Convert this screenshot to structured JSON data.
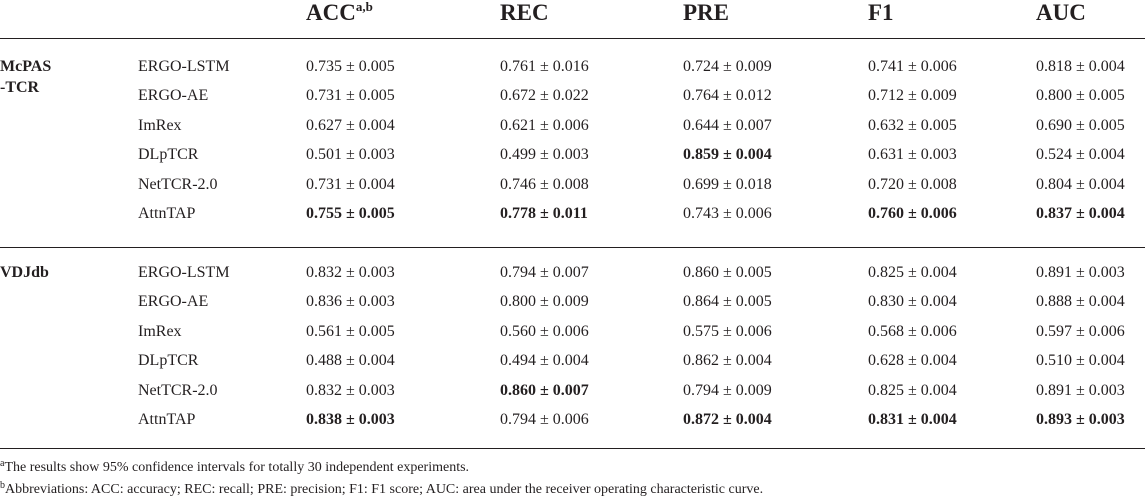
{
  "table": {
    "columns": [
      {
        "label": "ACC",
        "sup": "a,b"
      },
      {
        "label": "REC",
        "sup": ""
      },
      {
        "label": "PRE",
        "sup": ""
      },
      {
        "label": "F1",
        "sup": ""
      },
      {
        "label": "AUC",
        "sup": ""
      }
    ],
    "groups": [
      {
        "name_lines": [
          "McPAS",
          "-TCR"
        ],
        "rows": [
          {
            "model": "ERGO-LSTM",
            "values": [
              "0.735 ± 0.005",
              "0.761 ± 0.016",
              "0.724 ± 0.009",
              "0.741 ± 0.006",
              "0.818 ± 0.004"
            ],
            "bold": [
              false,
              false,
              false,
              false,
              false
            ]
          },
          {
            "model": "ERGO-AE",
            "values": [
              "0.731 ± 0.005",
              "0.672 ± 0.022",
              "0.764 ± 0.012",
              "0.712 ± 0.009",
              "0.800 ± 0.005"
            ],
            "bold": [
              false,
              false,
              false,
              false,
              false
            ]
          },
          {
            "model": "ImRex",
            "values": [
              "0.627 ± 0.004",
              "0.621 ± 0.006",
              "0.644 ± 0.007",
              "0.632 ± 0.005",
              "0.690 ± 0.005"
            ],
            "bold": [
              false,
              false,
              false,
              false,
              false
            ]
          },
          {
            "model": "DLpTCR",
            "values": [
              "0.501 ± 0.003",
              "0.499 ± 0.003",
              "0.859 ± 0.004",
              "0.631 ± 0.003",
              "0.524 ± 0.004"
            ],
            "bold": [
              false,
              false,
              true,
              false,
              false
            ]
          },
          {
            "model": "NetTCR-2.0",
            "values": [
              "0.731 ± 0.004",
              "0.746 ± 0.008",
              "0.699 ± 0.018",
              "0.720 ± 0.008",
              "0.804 ± 0.004"
            ],
            "bold": [
              false,
              false,
              false,
              false,
              false
            ]
          },
          {
            "model": "AttnTAP",
            "values": [
              "0.755 ± 0.005",
              "0.778 ± 0.011",
              "0.743 ± 0.006",
              "0.760 ± 0.006",
              "0.837 ± 0.004"
            ],
            "bold": [
              true,
              true,
              false,
              true,
              true
            ]
          }
        ]
      },
      {
        "name_lines": [
          "VDJdb"
        ],
        "rows": [
          {
            "model": "ERGO-LSTM",
            "values": [
              "0.832 ± 0.003",
              "0.794 ± 0.007",
              "0.860 ± 0.005",
              "0.825 ± 0.004",
              "0.891 ± 0.003"
            ],
            "bold": [
              false,
              false,
              false,
              false,
              false
            ]
          },
          {
            "model": "ERGO-AE",
            "values": [
              "0.836 ± 0.003",
              "0.800 ± 0.009",
              "0.864 ± 0.005",
              "0.830 ± 0.004",
              "0.888 ± 0.004"
            ],
            "bold": [
              false,
              false,
              false,
              false,
              false
            ]
          },
          {
            "model": "ImRex",
            "values": [
              "0.561 ± 0.005",
              "0.560 ± 0.006",
              "0.575 ± 0.006",
              "0.568 ± 0.006",
              "0.597 ± 0.006"
            ],
            "bold": [
              false,
              false,
              false,
              false,
              false
            ]
          },
          {
            "model": "DLpTCR",
            "values": [
              "0.488 ± 0.004",
              "0.494 ± 0.004",
              "0.862 ± 0.004",
              "0.628 ± 0.004",
              "0.510 ± 0.004"
            ],
            "bold": [
              false,
              false,
              false,
              false,
              false
            ]
          },
          {
            "model": "NetTCR-2.0",
            "values": [
              "0.832 ± 0.003",
              "0.860 ± 0.007",
              "0.794 ± 0.009",
              "0.825 ± 0.004",
              "0.891 ± 0.003"
            ],
            "bold": [
              false,
              true,
              false,
              false,
              false
            ]
          },
          {
            "model": "AttnTAP",
            "values": [
              "0.838 ± 0.003",
              "0.794 ± 0.006",
              "0.872 ± 0.004",
              "0.831 ± 0.004",
              "0.893 ± 0.003"
            ],
            "bold": [
              true,
              false,
              true,
              true,
              true
            ]
          }
        ]
      }
    ]
  },
  "footnotes": [
    {
      "mark": "a",
      "text": "The results show 95% confidence intervals for totally 30 independent experiments."
    },
    {
      "mark": "b",
      "text": "Abbreviations: ACC: accuracy; REC: recall; PRE: precision; F1: F1 score; AUC: area under the receiver operating characteristic curve."
    }
  ]
}
